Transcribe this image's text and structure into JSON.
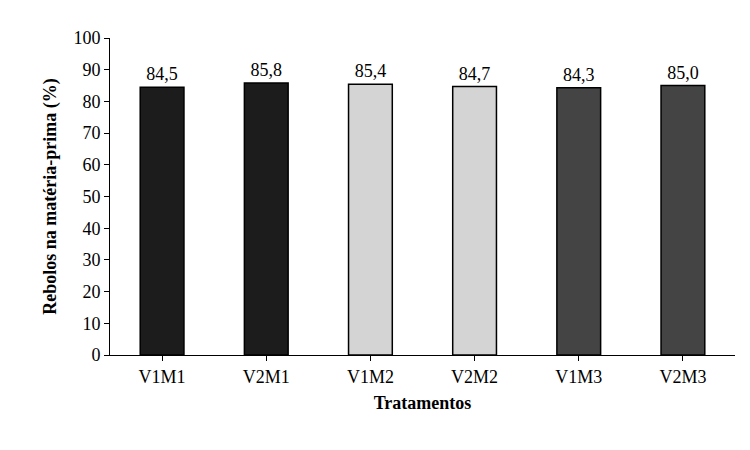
{
  "chart_data": {
    "type": "bar",
    "x_label": "Tratamentos",
    "y_label": "Rebolos na matéria-prima (%)",
    "categories": [
      "V1M1",
      "V2M1",
      "V1M2",
      "V2M2",
      "V1M3",
      "V2M3"
    ],
    "values": [
      84.5,
      85.8,
      85.4,
      84.7,
      84.3,
      85.0
    ],
    "value_labels": [
      "84,5",
      "85,8",
      "85,4",
      "84,7",
      "84,3",
      "85,0"
    ],
    "colors": [
      "#1c1c1c",
      "#1c1c1c",
      "#d4d4d4",
      "#d4d4d4",
      "#444444",
      "#444444"
    ],
    "ylim": [
      0,
      100
    ],
    "yticks": [
      0,
      10,
      20,
      30,
      40,
      50,
      60,
      70,
      80,
      90,
      100
    ],
    "grid": false,
    "data_labels": true
  }
}
